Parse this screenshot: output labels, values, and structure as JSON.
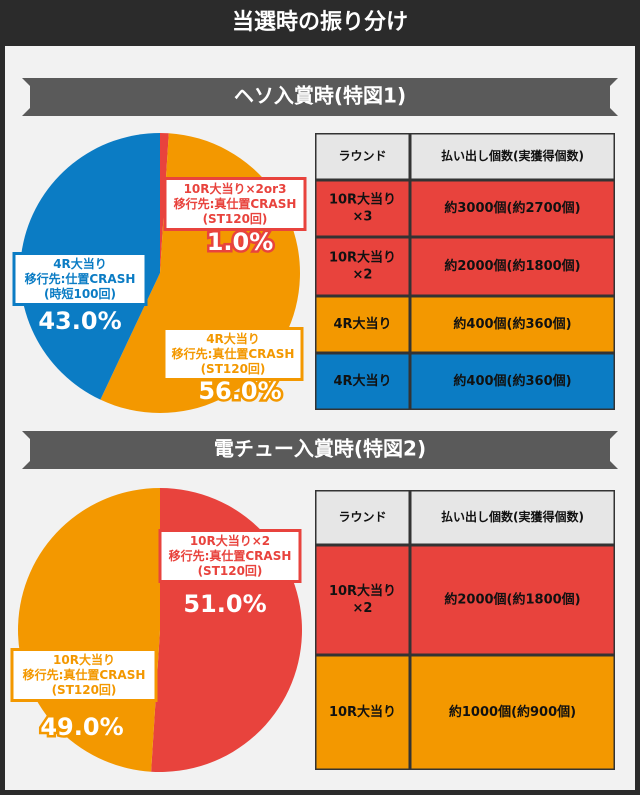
{
  "title": "当選時の振り分け",
  "chart_data": [
    {
      "type": "pie",
      "title": "ヘソ入賞時(特図1)",
      "categories": [
        [
          "10R大当り×2or3",
          "移行先:真仕置CRASH",
          "(ST120回)"
        ],
        [
          "4R大当り",
          "移行先:真仕置CRASH",
          "(ST120回)"
        ],
        [
          "4R大当り",
          "移行先:仕置CRASH",
          "(時短100回)"
        ]
      ],
      "values": [
        1.0,
        56.0,
        43.0
      ],
      "value_labels": [
        "1.0%",
        "56.0%",
        "43.0%"
      ],
      "colors": [
        "#e8433d",
        "#f39800",
        "#0b7cc4"
      ]
    },
    {
      "type": "pie",
      "title": "電チュー入賞時(特図2)",
      "categories": [
        [
          "10R大当り×2",
          "移行先:真仕置CRASH",
          "(ST120回)"
        ],
        [
          "10R大当り",
          "移行先:真仕置CRASH",
          "(ST120回)"
        ]
      ],
      "values": [
        51.0,
        49.0
      ],
      "value_labels": [
        "51.0%",
        "49.0%"
      ],
      "colors": [
        "#e8433d",
        "#f39800"
      ]
    }
  ],
  "tables": [
    {
      "header": [
        "ラウンド",
        "払い出し個数(実獲得個数)"
      ],
      "rows": [
        {
          "color": "#e8433d",
          "cells": [
            [
              "10R大当り",
              "×3"
            ],
            [
              "約3000個(約2700個)"
            ]
          ]
        },
        {
          "color": "#e8433d",
          "cells": [
            [
              "10R大当り",
              "×2"
            ],
            [
              "約2000個(約1800個)"
            ]
          ]
        },
        {
          "color": "#f39800",
          "cells": [
            [
              "4R大当り"
            ],
            [
              "約400個(約360個)"
            ]
          ]
        },
        {
          "color": "#0b7cc4",
          "cells": [
            [
              "4R大当り"
            ],
            [
              "約400個(約360個)"
            ]
          ]
        }
      ]
    },
    {
      "header": [
        "ラウンド",
        "払い出し個数(実獲得個数)"
      ],
      "rows": [
        {
          "color": "#e8433d",
          "cells": [
            [
              "10R大当り",
              "×2"
            ],
            [
              "約2000個(約1800個)"
            ]
          ]
        },
        {
          "color": "#f39800",
          "cells": [
            [
              "10R大当り"
            ],
            [
              "約1000個(約900個)"
            ]
          ]
        }
      ]
    }
  ]
}
